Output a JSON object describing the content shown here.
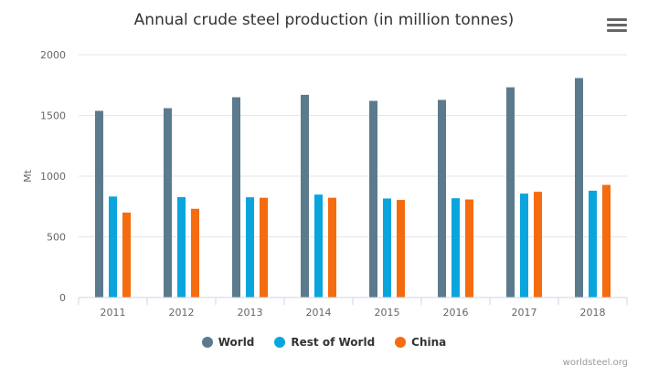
{
  "menu": {
    "icon": "hamburger-menu-icon"
  },
  "credits": "worldsteel.org",
  "chart_data": {
    "type": "bar",
    "title": "Annual crude steel production (in million tonnes)",
    "xlabel": "",
    "ylabel": "Mt",
    "ylim": [
      0,
      2000
    ],
    "yticks": [
      0,
      500,
      1000,
      1500,
      2000
    ],
    "grid": true,
    "legend_position": "bottom-center",
    "categories": [
      "2011",
      "2012",
      "2013",
      "2014",
      "2015",
      "2016",
      "2017",
      "2018"
    ],
    "series": [
      {
        "name": "World",
        "color": "#5b7b8c",
        "values": [
          1538,
          1560,
          1650,
          1670,
          1620,
          1628,
          1732,
          1808
        ]
      },
      {
        "name": "Rest of World",
        "color": "#0ba5dd",
        "values": [
          832,
          827,
          826,
          848,
          816,
          818,
          856,
          880
        ]
      },
      {
        "name": "China",
        "color": "#f56b0f",
        "values": [
          700,
          731,
          822,
          822,
          804,
          808,
          871,
          928
        ]
      }
    ]
  }
}
